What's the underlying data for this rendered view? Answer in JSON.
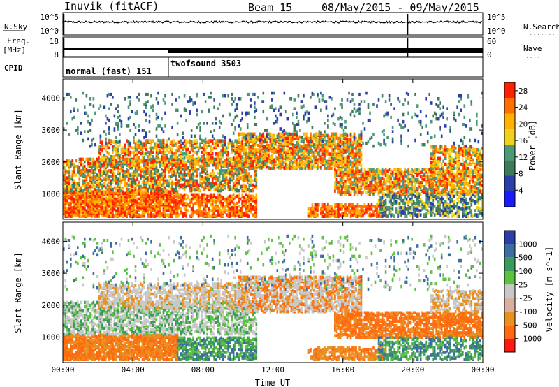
{
  "header": {
    "station": "Inuvik (fitACF)",
    "beam": "Beam 15",
    "date_range": "08/May/2015 - 09/May/2015"
  },
  "strip_labels": {
    "nsky": "N.Sky",
    "nsearch": "N.Search",
    "nsearch_dots": "·······",
    "freq": "Freq.",
    "freq_unit": "[MHz]",
    "nave": "Nave",
    "nave_dots": "····",
    "cpid": "CPID"
  },
  "strip_ticks": {
    "nsky_left": [
      "10^5",
      "10^0"
    ],
    "nsky_right": [
      "10^5",
      "10^0"
    ],
    "freq_left": [
      "18",
      "8"
    ],
    "nave_right": [
      "60",
      "0"
    ]
  },
  "cpid_modes": [
    {
      "label": "normal (fast) 151",
      "start_hour": 0
    },
    {
      "label": "twofsound 3503",
      "start_hour": 6
    }
  ],
  "colors": {
    "power_scale": [
      "#1a1aff",
      "#2a3fa8",
      "#3c7a5a",
      "#4a9a78",
      "#f0d020",
      "#ffb000",
      "#ff7000",
      "#ff2000"
    ],
    "velocity_scale": [
      "#2a3fa8",
      "#3b6da0",
      "#3a9a5a",
      "#5cc040",
      "#c8c8c8",
      "#d9b0a0",
      "#e89020",
      "#ff6a10",
      "#ff1a10"
    ]
  },
  "chart_data": [
    {
      "type": "heatmap",
      "name_hint": "power",
      "xlabel": "",
      "ylabel": "Slant Range [km]",
      "x_range_hours": [
        0,
        24
      ],
      "ylim": [
        200,
        4600
      ],
      "y_ticks": [
        "1000",
        "2000",
        "3000",
        "4000"
      ],
      "colorbar_label": "Power [dB]",
      "colorbar_ticks": [
        "4",
        "8",
        "12",
        "16",
        "20",
        "24",
        "28"
      ],
      "colorbar_range": [
        0,
        30
      ]
    },
    {
      "type": "heatmap",
      "name_hint": "velocity",
      "xlabel": "Time UT",
      "ylabel": "Slant Range [km]",
      "x_range_hours": [
        0,
        24
      ],
      "ylim": [
        200,
        4600
      ],
      "x_ticks": [
        "00:00",
        "04:00",
        "08:00",
        "12:00",
        "16:00",
        "20:00",
        "00:00"
      ],
      "y_ticks": [
        "1000",
        "2000",
        "3000",
        "4000"
      ],
      "colorbar_label": "Velocity [m s^-1]",
      "colorbar_ticks": [
        "1000",
        "500",
        "100",
        "25",
        "-25",
        "-100",
        "-500",
        "-1000"
      ]
    }
  ]
}
